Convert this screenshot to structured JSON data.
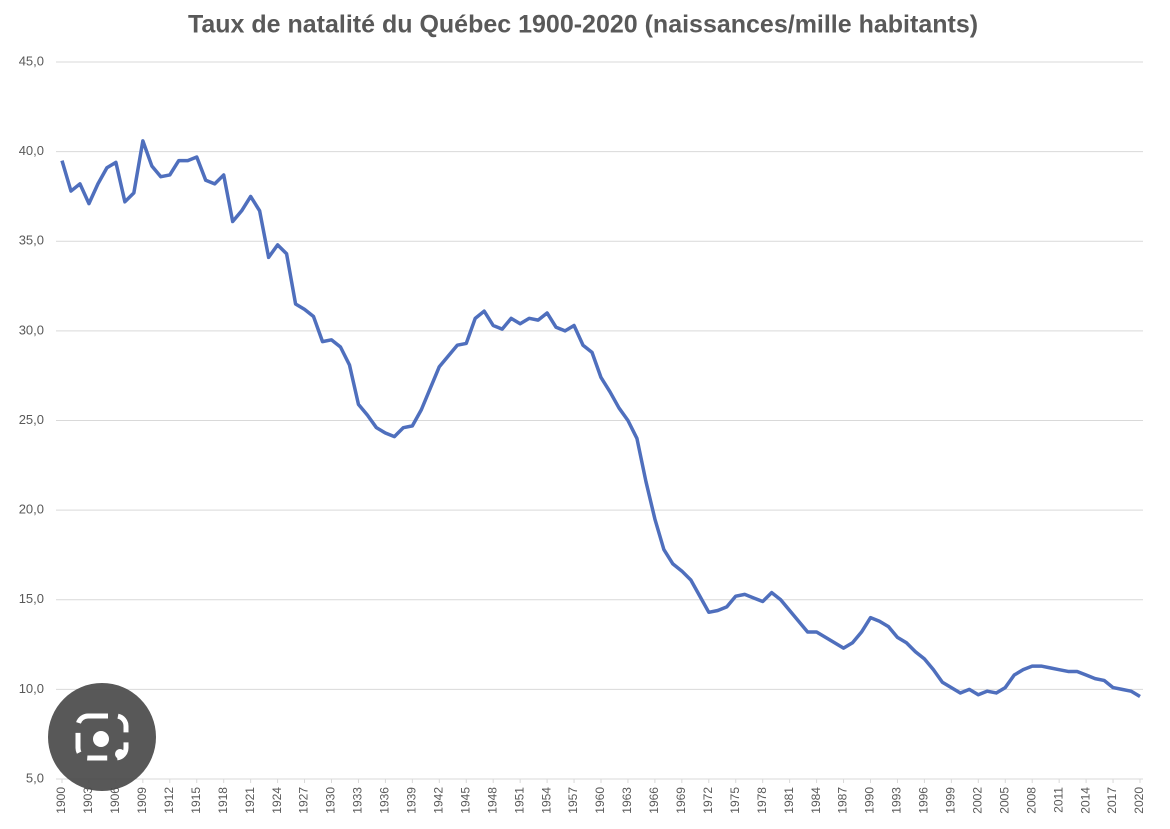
{
  "chart_data": {
    "type": "line",
    "title": "Taux de natalité du Québec 1900-2020 (naissances/mille habitants)",
    "x": [
      1900,
      1901,
      1902,
      1903,
      1904,
      1905,
      1906,
      1907,
      1908,
      1909,
      1910,
      1911,
      1912,
      1913,
      1914,
      1915,
      1916,
      1917,
      1918,
      1919,
      1920,
      1921,
      1922,
      1923,
      1924,
      1925,
      1926,
      1927,
      1928,
      1929,
      1930,
      1931,
      1932,
      1933,
      1934,
      1935,
      1936,
      1937,
      1938,
      1939,
      1940,
      1941,
      1942,
      1943,
      1944,
      1945,
      1946,
      1947,
      1948,
      1949,
      1950,
      1951,
      1952,
      1953,
      1954,
      1955,
      1956,
      1957,
      1958,
      1959,
      1960,
      1961,
      1962,
      1963,
      1964,
      1965,
      1966,
      1967,
      1968,
      1969,
      1970,
      1971,
      1972,
      1973,
      1974,
      1975,
      1976,
      1977,
      1978,
      1979,
      1980,
      1981,
      1982,
      1983,
      1984,
      1985,
      1986,
      1987,
      1988,
      1989,
      1990,
      1991,
      1992,
      1993,
      1994,
      1995,
      1996,
      1997,
      1998,
      1999,
      2000,
      2001,
      2002,
      2003,
      2004,
      2005,
      2006,
      2007,
      2008,
      2009,
      2010,
      2011,
      2012,
      2013,
      2014,
      2015,
      2016,
      2017,
      2018,
      2019,
      2020
    ],
    "series": [
      {
        "color": "#4f6fbd",
        "values": [
          39.5,
          37.8,
          38.2,
          37.1,
          38.2,
          39.1,
          39.4,
          37.2,
          37.7,
          40.6,
          39.2,
          38.6,
          38.7,
          39.5,
          39.5,
          39.7,
          38.4,
          38.2,
          38.7,
          36.1,
          36.7,
          37.5,
          36.7,
          34.1,
          34.8,
          34.3,
          31.5,
          31.2,
          30.8,
          29.4,
          29.5,
          29.1,
          28.1,
          25.9,
          25.3,
          24.6,
          24.3,
          24.1,
          24.6,
          24.7,
          25.6,
          26.8,
          28.0,
          28.6,
          29.2,
          29.3,
          30.7,
          31.1,
          30.3,
          30.1,
          30.7,
          30.4,
          30.7,
          30.6,
          31.0,
          30.2,
          30.0,
          30.3,
          29.2,
          28.8,
          27.4,
          26.6,
          25.7,
          25.0,
          24.0,
          21.6,
          19.5,
          17.8,
          17.0,
          16.6,
          16.1,
          15.2,
          14.3,
          14.4,
          14.6,
          15.2,
          15.3,
          15.1,
          14.9,
          15.4,
          15.0,
          14.4,
          13.8,
          13.2,
          13.2,
          12.9,
          12.6,
          12.3,
          12.6,
          13.2,
          14.0,
          13.8,
          13.5,
          12.9,
          12.6,
          12.1,
          11.7,
          11.1,
          10.4,
          10.1,
          9.8,
          10.0,
          9.7,
          9.9,
          9.8,
          10.1,
          10.8,
          11.1,
          11.3,
          11.3,
          11.2,
          11.1,
          11.0,
          11.0,
          10.8,
          10.6,
          10.5,
          10.1,
          10.0,
          9.9,
          9.6
        ]
      }
    ],
    "xlim": [
      1900,
      2020
    ],
    "xticks": [
      1900,
      1903,
      1906,
      1909,
      1912,
      1915,
      1918,
      1921,
      1924,
      1927,
      1930,
      1933,
      1936,
      1939,
      1942,
      1945,
      1948,
      1951,
      1954,
      1957,
      1960,
      1963,
      1966,
      1969,
      1972,
      1975,
      1978,
      1981,
      1984,
      1987,
      1990,
      1993,
      1996,
      1999,
      2002,
      2005,
      2008,
      2011,
      2014,
      2017,
      2020
    ],
    "ylim": [
      5,
      45
    ],
    "yticks": [
      {
        "value": 5,
        "label": "5,0"
      },
      {
        "value": 10,
        "label": "10,0"
      },
      {
        "value": 15,
        "label": "15,0"
      },
      {
        "value": 20,
        "label": "20,0"
      },
      {
        "value": 25,
        "label": "25,0"
      },
      {
        "value": 30,
        "label": "30,0"
      },
      {
        "value": 35,
        "label": "35,0"
      },
      {
        "value": 40,
        "label": "40,0"
      },
      {
        "value": 45,
        "label": "45,0"
      }
    ],
    "grid": true
  }
}
